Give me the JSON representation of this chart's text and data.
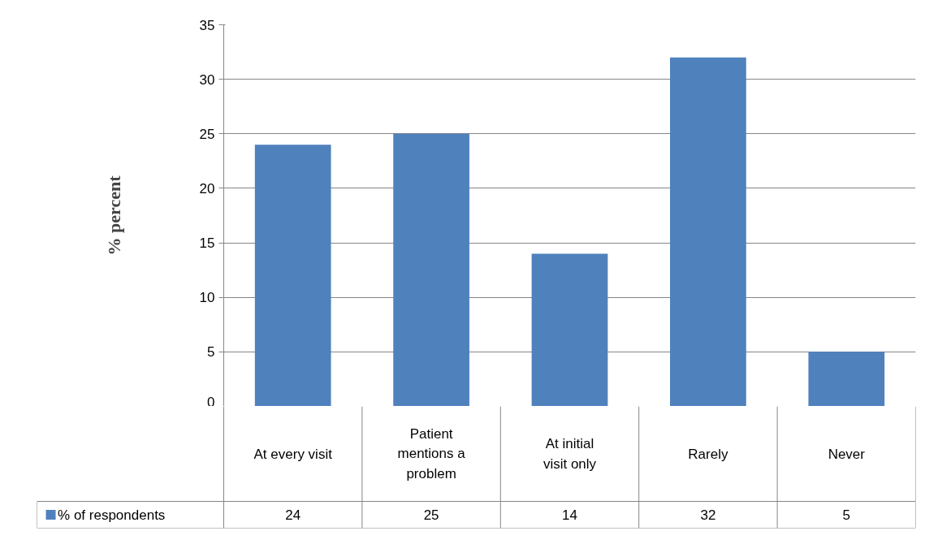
{
  "chart_data": {
    "type": "bar",
    "ylabel": "% percent",
    "categories": [
      "At every visit",
      "Patient mentions a problem",
      "At initial visit only",
      "Rarely",
      "Never"
    ],
    "series": [
      {
        "name": "% of respondents",
        "color": "#4f81bd",
        "values": [
          24,
          25,
          14,
          32,
          5
        ]
      }
    ],
    "ylim": [
      0,
      35
    ],
    "yticks": [
      0,
      5,
      10,
      15,
      20,
      25,
      30,
      35
    ],
    "grid": "y",
    "data_labels": true,
    "legend": "bottom"
  }
}
